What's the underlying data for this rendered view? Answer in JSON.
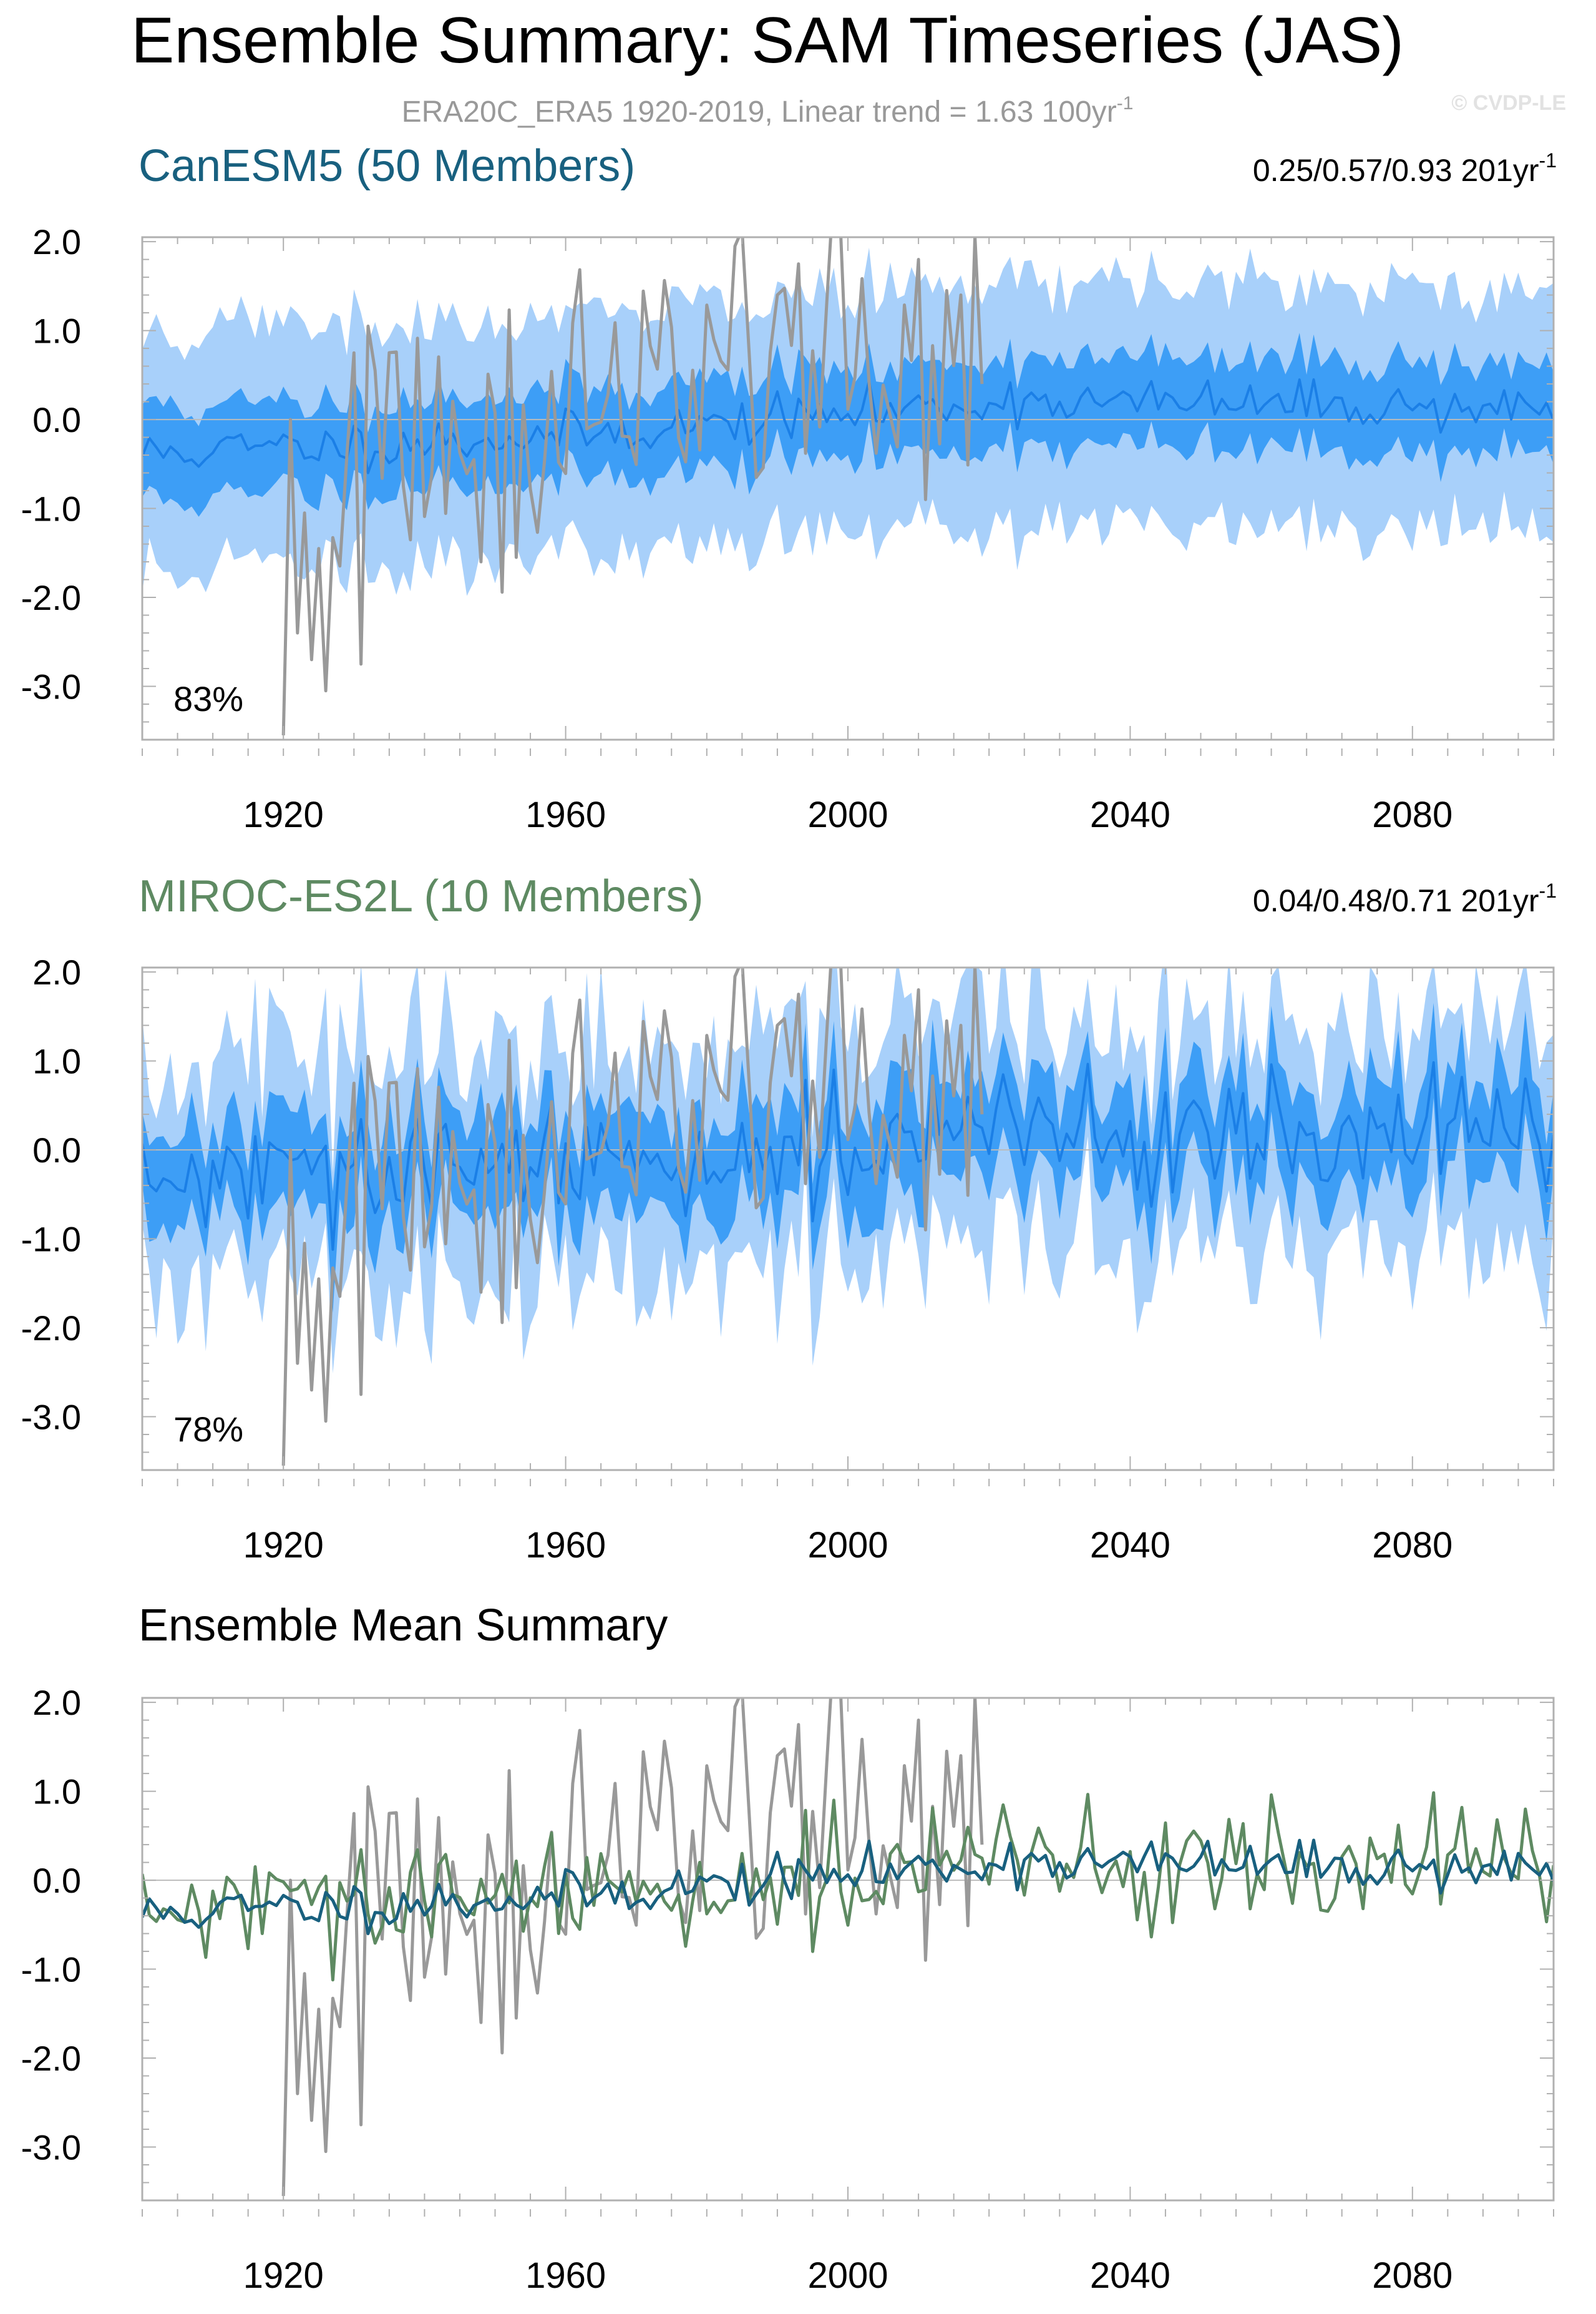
{
  "figure": {
    "title": "Ensemble Summary: SAM Timeseries (JAS)",
    "subtitle_main": "ERA20C_ERA5 1920-2019, Linear trend = 1.63 100yr",
    "subtitle_sup": "-1",
    "watermark": "© CVDP-LE"
  },
  "colors": {
    "outer_band": "#a8d0fa",
    "inner_band": "#3d9ef6",
    "ens_mean_line": "#1b7fe6",
    "obs": "#999999",
    "canesm5": "#18607f",
    "miroc": "#5e8a62",
    "frame": "#b0b0b0",
    "zero_line": "#bbbbbb"
  },
  "chart_data": [
    {
      "type": "area",
      "panel_title": "CanESM5 (50 Members)",
      "stats_main": "0.25/0.57/0.93 201yr",
      "stats_sup": "-1",
      "percent_label": "83%",
      "xlim": [
        1900,
        2100
      ],
      "ylim": [
        -3.6,
        2.05
      ],
      "yticks": [
        2.0,
        1.0,
        0.0,
        -1.0,
        -2.0,
        -3.0
      ],
      "ytick_labels": [
        "2.0",
        "1.0",
        "0.0",
        "-1.0",
        "-2.0",
        "-3.0"
      ],
      "xticks": [
        1920,
        1960,
        2000,
        2040,
        2080
      ],
      "xtick_labels": [
        "1920",
        "1960",
        "2000",
        "2040",
        "2080"
      ],
      "series": [
        {
          "name": "ERA20C_ERA5",
          "role": "obs",
          "start_year": 1920,
          "end_year": 2019
        },
        {
          "name": "CanESM5 ensemble mean",
          "role": "mean",
          "start_year": 1900,
          "end_year": 2100
        },
        {
          "name": "CanESM5 inner range",
          "role": "inner_band"
        },
        {
          "name": "CanESM5 full range",
          "role": "outer_band"
        }
      ]
    },
    {
      "type": "area",
      "panel_title": "MIROC-ES2L (10 Members)",
      "stats_main": "0.04/0.48/0.71 201yr",
      "stats_sup": "-1",
      "percent_label": "78%",
      "xlim": [
        1900,
        2100
      ],
      "ylim": [
        -3.6,
        2.05
      ],
      "yticks": [
        2.0,
        1.0,
        0.0,
        -1.0,
        -2.0,
        -3.0
      ],
      "ytick_labels": [
        "2.0",
        "1.0",
        "0.0",
        "-1.0",
        "-2.0",
        "-3.0"
      ],
      "xticks": [
        1920,
        1960,
        2000,
        2040,
        2080
      ],
      "xtick_labels": [
        "1920",
        "1960",
        "2000",
        "2040",
        "2080"
      ],
      "series": [
        {
          "name": "ERA20C_ERA5",
          "role": "obs",
          "start_year": 1920,
          "end_year": 2019
        },
        {
          "name": "MIROC-ES2L ensemble mean",
          "role": "mean",
          "start_year": 1900,
          "end_year": 2100
        },
        {
          "name": "MIROC-ES2L inner range",
          "role": "inner_band"
        },
        {
          "name": "MIROC-ES2L full range",
          "role": "outer_band"
        }
      ]
    },
    {
      "type": "line",
      "panel_title": "Ensemble Mean Summary",
      "xlim": [
        1900,
        2100
      ],
      "ylim": [
        -3.6,
        2.05
      ],
      "yticks": [
        2.0,
        1.0,
        0.0,
        -1.0,
        -2.0,
        -3.0
      ],
      "ytick_labels": [
        "2.0",
        "1.0",
        "0.0",
        "-1.0",
        "-2.0",
        "-3.0"
      ],
      "xticks": [
        1920,
        1960,
        2000,
        2040,
        2080
      ],
      "xtick_labels": [
        "1920",
        "1960",
        "2000",
        "2040",
        "2080"
      ],
      "series": [
        {
          "name": "ERA20C_ERA5",
          "role": "obs"
        },
        {
          "name": "CanESM5",
          "role": "canesm5"
        },
        {
          "name": "MIROC-ES2L",
          "role": "miroc"
        }
      ]
    }
  ]
}
